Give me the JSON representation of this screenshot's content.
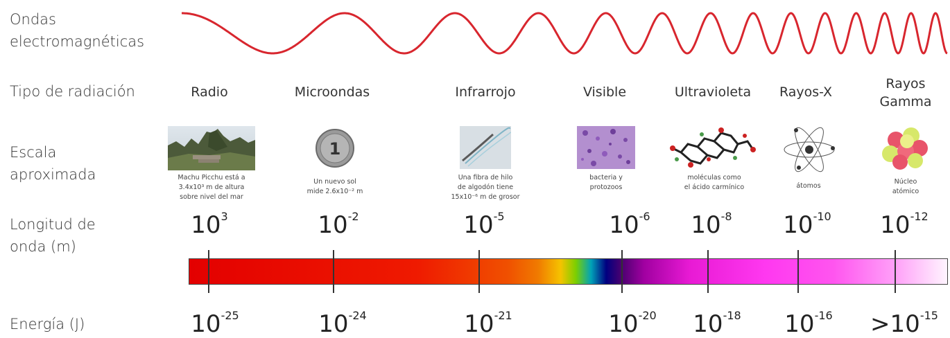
{
  "labels": {
    "ondas": [
      "Ondas",
      "electromagnéticas"
    ],
    "tipo": "Tipo de radiación",
    "escala": [
      "Escala",
      "aproximada"
    ],
    "longitud": [
      "Longitud de",
      "onda (m)"
    ],
    "energia": "Energía (J)"
  },
  "types": [
    {
      "name": "Radio",
      "name2": ""
    },
    {
      "name": "Microondas",
      "name2": ""
    },
    {
      "name": "Infrarrojo",
      "name2": ""
    },
    {
      "name": "Visible",
      "name2": ""
    },
    {
      "name": "Ultravioleta",
      "name2": ""
    },
    {
      "name": "Rayos-X",
      "name2": ""
    },
    {
      "name": "Rayos",
      "name2": "Gamma"
    }
  ],
  "captions": [
    [
      "Machu Picchu está a",
      "3.4x10³ m de altura",
      "sobre nivel del mar"
    ],
    [
      "Un nuevo sol",
      "mide 2.6x10⁻² m"
    ],
    [
      "Una fibra de hilo",
      "de algodón tiene",
      "15x10⁻⁶ m de grosor"
    ],
    [
      "bacteria y",
      "protozoos"
    ],
    [
      "moléculas como",
      "el ácido carmínico"
    ],
    [
      "átomos"
    ],
    [
      "Núcleo",
      "atómico"
    ]
  ],
  "wavelengths": [
    {
      "base": "10",
      "exp": "3"
    },
    {
      "base": "10",
      "exp": "-2"
    },
    {
      "base": "10",
      "exp": "-5"
    },
    {
      "base": "10",
      "exp": "-6"
    },
    {
      "base": "10",
      "exp": "-8"
    },
    {
      "base": "10",
      "exp": "-10"
    },
    {
      "base": "10",
      "exp": "-12"
    }
  ],
  "energies": [
    {
      "base": "10",
      "exp": "-25"
    },
    {
      "base": "10",
      "exp": "-24"
    },
    {
      "base": "10",
      "exp": "-21"
    },
    {
      "base": "10",
      "exp": "-20"
    },
    {
      "base": "10",
      "exp": "-18"
    },
    {
      "base": "10",
      "exp": "-16"
    },
    {
      "base": ">10",
      "exp": "-15"
    }
  ],
  "icons": [
    "mountain-photo-icon",
    "coin-icon",
    "cotton-fiber-icon",
    "bacteria-icon",
    "molecule-icon",
    "atom-icon",
    "nucleus-icon"
  ],
  "colors": {
    "wave": "#d8262e",
    "text": "#2a2a2a"
  }
}
